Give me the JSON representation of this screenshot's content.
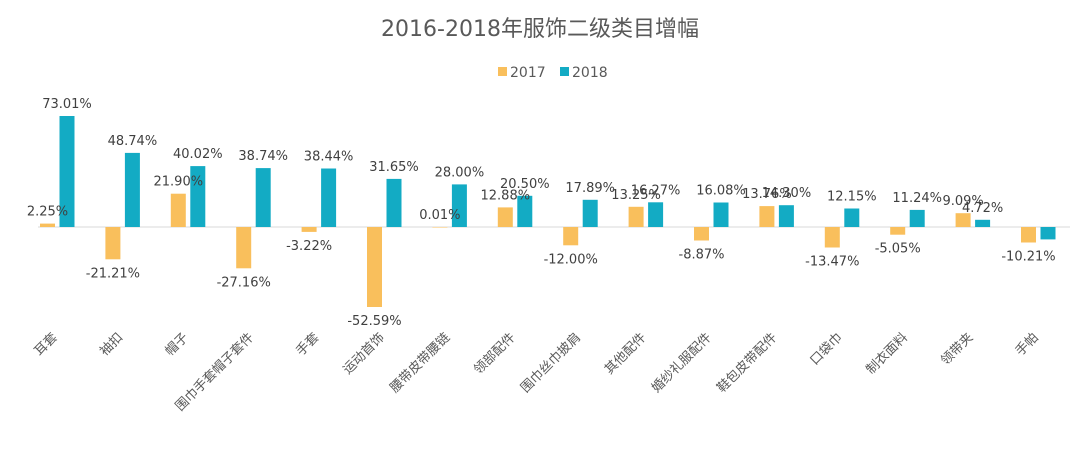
{
  "chart_data": {
    "type": "bar",
    "title": "2016-2018年服饰二级类目增幅",
    "categories": [
      "耳套",
      "袖扣",
      "帽子",
      "围巾手套帽子套件",
      "手套",
      "运动首饰",
      "腰带皮带腰链",
      "领部配件",
      "围巾丝巾披肩",
      "其他配件",
      "婚纱礼服配件",
      "鞋包皮带配件",
      "口袋巾",
      "制衣面料",
      "领带夹",
      "手帕"
    ],
    "series": [
      {
        "name": "2017",
        "color": "#F9BF5C",
        "values": [
          2.25,
          -21.21,
          21.9,
          -27.16,
          -3.22,
          -52.59,
          0.01,
          12.88,
          -12.0,
          13.25,
          -8.87,
          13.76,
          -13.47,
          -5.05,
          9.09,
          -10.21
        ],
        "labels": [
          "2.25%",
          "-21.21%",
          "21.90%",
          "-27.16%",
          "-3.22%",
          "-52.59%",
          "0.01%",
          "12.88%",
          "-12.00%",
          "13.25%",
          "-8.87%",
          "13.76%",
          "-13.47%",
          "-5.05%",
          "9.09%",
          "-10.21%"
        ]
      },
      {
        "name": "2018",
        "color": "#13ABC4",
        "values": [
          73.01,
          48.74,
          40.02,
          38.74,
          38.44,
          31.65,
          28.0,
          20.5,
          17.89,
          16.27,
          16.08,
          14.3,
          12.15,
          11.24,
          4.72,
          -8.13
        ],
        "labels": [
          "73.01%",
          "48.74%",
          "40.02%",
          "38.74%",
          "38.44%",
          "31.65%",
          "28.00%",
          "20.50%",
          "17.89%",
          "16.27%",
          "16.08%",
          "14.30%",
          "12.15%",
          "11.24%",
          "4.72%",
          ""
        ]
      }
    ],
    "ylim": [
      -60,
      80
    ],
    "grid": false,
    "legend_position": "top-center"
  }
}
